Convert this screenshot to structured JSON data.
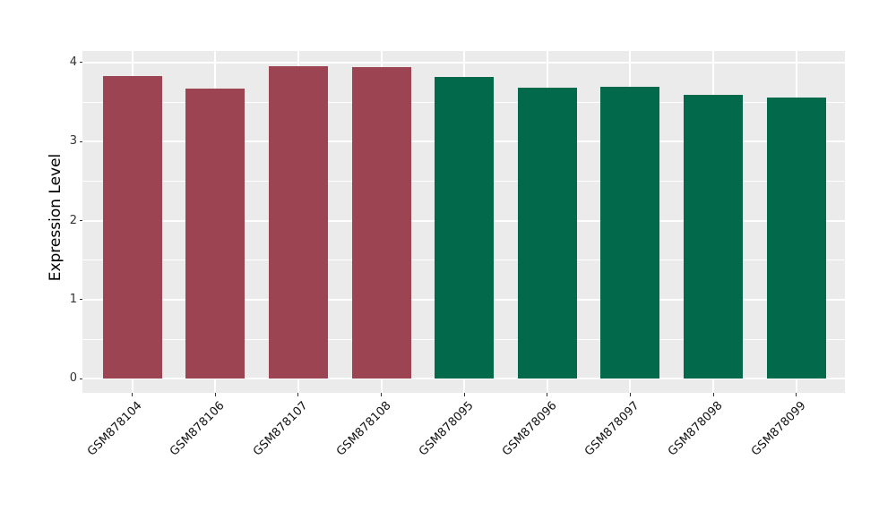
{
  "chart_data": {
    "type": "bar",
    "title": "",
    "xlabel": "",
    "ylabel": "Expression Level",
    "categories": [
      "GSM878104",
      "GSM878106",
      "GSM878107",
      "GSM878108",
      "GSM878095",
      "GSM878096",
      "GSM878097",
      "GSM878098",
      "GSM878099"
    ],
    "values": [
      3.83,
      3.67,
      3.96,
      3.94,
      3.82,
      3.68,
      3.7,
      3.59,
      3.56
    ],
    "bar_colors": [
      "#9C4451",
      "#9C4451",
      "#9C4451",
      "#9C4451",
      "#02694B",
      "#02694B",
      "#02694B",
      "#02694B",
      "#02694B"
    ],
    "y_ticks": [
      "0",
      "1",
      "2",
      "3",
      "4"
    ],
    "y_tick_values": [
      0,
      1,
      2,
      3,
      4
    ],
    "y_minor_tick_values": [
      0.5,
      1.5,
      2.5,
      3.5
    ],
    "ylim": [
      -0.2,
      4.16
    ],
    "grid": true,
    "legend": "none",
    "colors": {
      "group_a": "#9C4451",
      "group_b": "#02694B",
      "panel_background": "#EBEBEB",
      "grid": "#FFFFFF",
      "tick_text": "#333333",
      "axis_title": "#000000"
    }
  }
}
